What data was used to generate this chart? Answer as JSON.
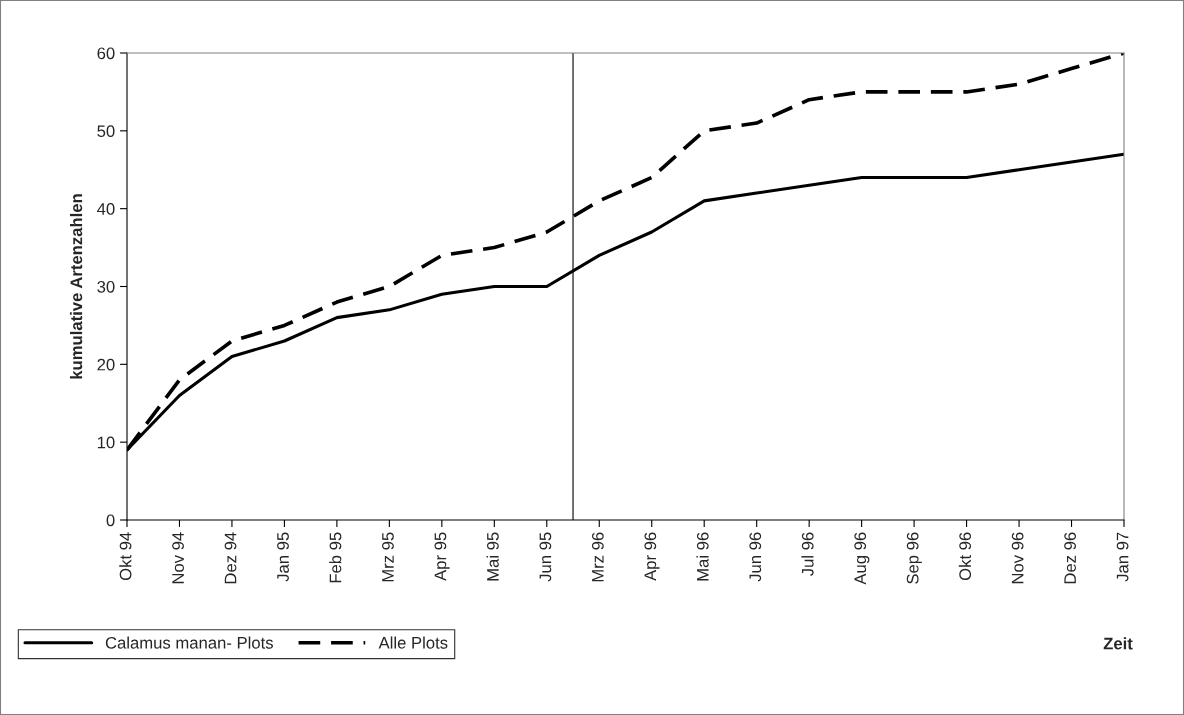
{
  "chart_data": {
    "type": "line",
    "xlabel": "Zeit",
    "ylabel": "kumulative Artenzahlen",
    "categories": [
      "Okt 94",
      "Nov 94",
      "Dez 94",
      "Jan 95",
      "Feb 95",
      "Mrz 95",
      "Apr 95",
      "Mai 95",
      "Jun 95",
      "Mrz 96",
      "Apr 96",
      "Mai 96",
      "Jun 96",
      "Jul 96",
      "Aug 96",
      "Sep 96",
      "Okt 96",
      "Nov 96",
      "Dez 96",
      "Jan 97"
    ],
    "series": [
      {
        "name": "Calamus manan- Plots",
        "color": "#000000",
        "line_style": "solid",
        "values": [
          9,
          16,
          21,
          23,
          26,
          27,
          29,
          30,
          30,
          34,
          37,
          41,
          42,
          43,
          44,
          44,
          44,
          45,
          46,
          47
        ]
      },
      {
        "name": "Alle Plots",
        "color": "#000000",
        "line_style": "dashed",
        "values": [
          9,
          18,
          23,
          25,
          28,
          30,
          34,
          35,
          37,
          41,
          44,
          50,
          51,
          54,
          55,
          55,
          55,
          56,
          58,
          60
        ]
      }
    ],
    "ylim": [
      0,
      60
    ],
    "yticks": [
      0,
      10,
      20,
      30,
      40,
      50,
      60
    ],
    "grid": false,
    "legend": "bottom left",
    "marker": "none"
  }
}
